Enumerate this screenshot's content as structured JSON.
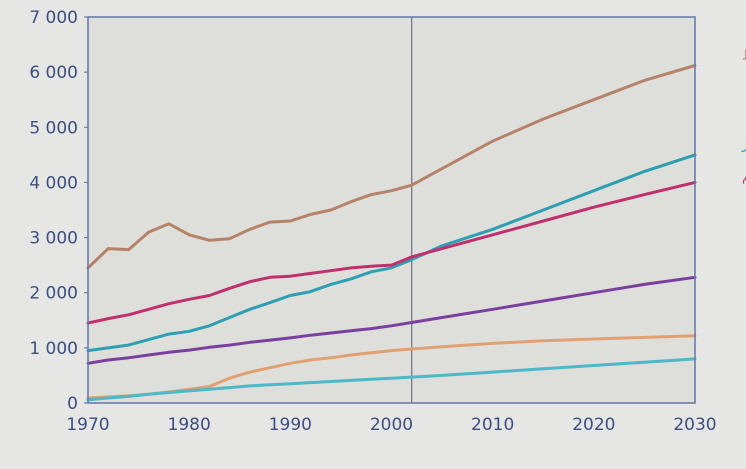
{
  "chart_data": {
    "type": "line",
    "title": "",
    "xlabel": "",
    "ylabel": "",
    "x": [
      1970,
      1972,
      1974,
      1976,
      1978,
      1980,
      1982,
      1984,
      1986,
      1988,
      1990,
      1992,
      1994,
      1996,
      1998,
      2000,
      2002,
      2005,
      2010,
      2015,
      2020,
      2025,
      2030
    ],
    "xlim": [
      1970,
      2030
    ],
    "ylim": [
      0,
      7000
    ],
    "x_ticks": [
      "1970",
      "1980",
      "1990",
      "2000",
      "2010",
      "2020",
      "2030"
    ],
    "y_ticks": [
      "0",
      "1 000",
      "2 000",
      "3 000",
      "4 000",
      "5 000",
      "6 000",
      "7 000"
    ],
    "reference_line_x": 2002,
    "grid": false,
    "legend": "right-side labels",
    "series": [
      {
        "name": "نفط",
        "color": "#b5826a",
        "values": [
          2450,
          2800,
          2780,
          3100,
          3250,
          3050,
          2950,
          2980,
          3150,
          3280,
          3300,
          3420,
          3500,
          3650,
          3780,
          3850,
          3950,
          4250,
          4750,
          5150,
          5500,
          5850,
          6120
        ]
      },
      {
        "name": "غاز",
        "color": "#2e9fb2",
        "values": [
          950,
          1000,
          1050,
          1150,
          1250,
          1300,
          1400,
          1550,
          1700,
          1820,
          1950,
          2020,
          2150,
          2250,
          2380,
          2450,
          2600,
          2850,
          3150,
          3500,
          3850,
          4200,
          4500
        ]
      },
      {
        "name": "فحم",
        "color": "#c0306f",
        "values": [
          1450,
          1530,
          1600,
          1700,
          1800,
          1880,
          1950,
          2080,
          2200,
          2280,
          2300,
          2350,
          2400,
          2450,
          2480,
          2500,
          2650,
          2800,
          3050,
          3300,
          3550,
          3780,
          4000
        ]
      },
      {
        "name": "",
        "color": "#7b3fa0",
        "values": [
          720,
          780,
          820,
          870,
          920,
          960,
          1010,
          1050,
          1100,
          1140,
          1180,
          1230,
          1270,
          1310,
          1350,
          1400,
          1460,
          1550,
          1700,
          1850,
          2000,
          2150,
          2280
        ]
      },
      {
        "name": "",
        "color": "#e0a070",
        "values": [
          90,
          110,
          130,
          160,
          200,
          250,
          300,
          450,
          560,
          640,
          720,
          780,
          820,
          870,
          910,
          950,
          980,
          1020,
          1080,
          1130,
          1160,
          1190,
          1220
        ]
      },
      {
        "name": "",
        "color": "#4cb8c8",
        "values": [
          60,
          90,
          120,
          160,
          190,
          220,
          250,
          280,
          310,
          330,
          350,
          370,
          390,
          410,
          430,
          450,
          470,
          500,
          560,
          620,
          680,
          740,
          800
        ]
      }
    ]
  }
}
